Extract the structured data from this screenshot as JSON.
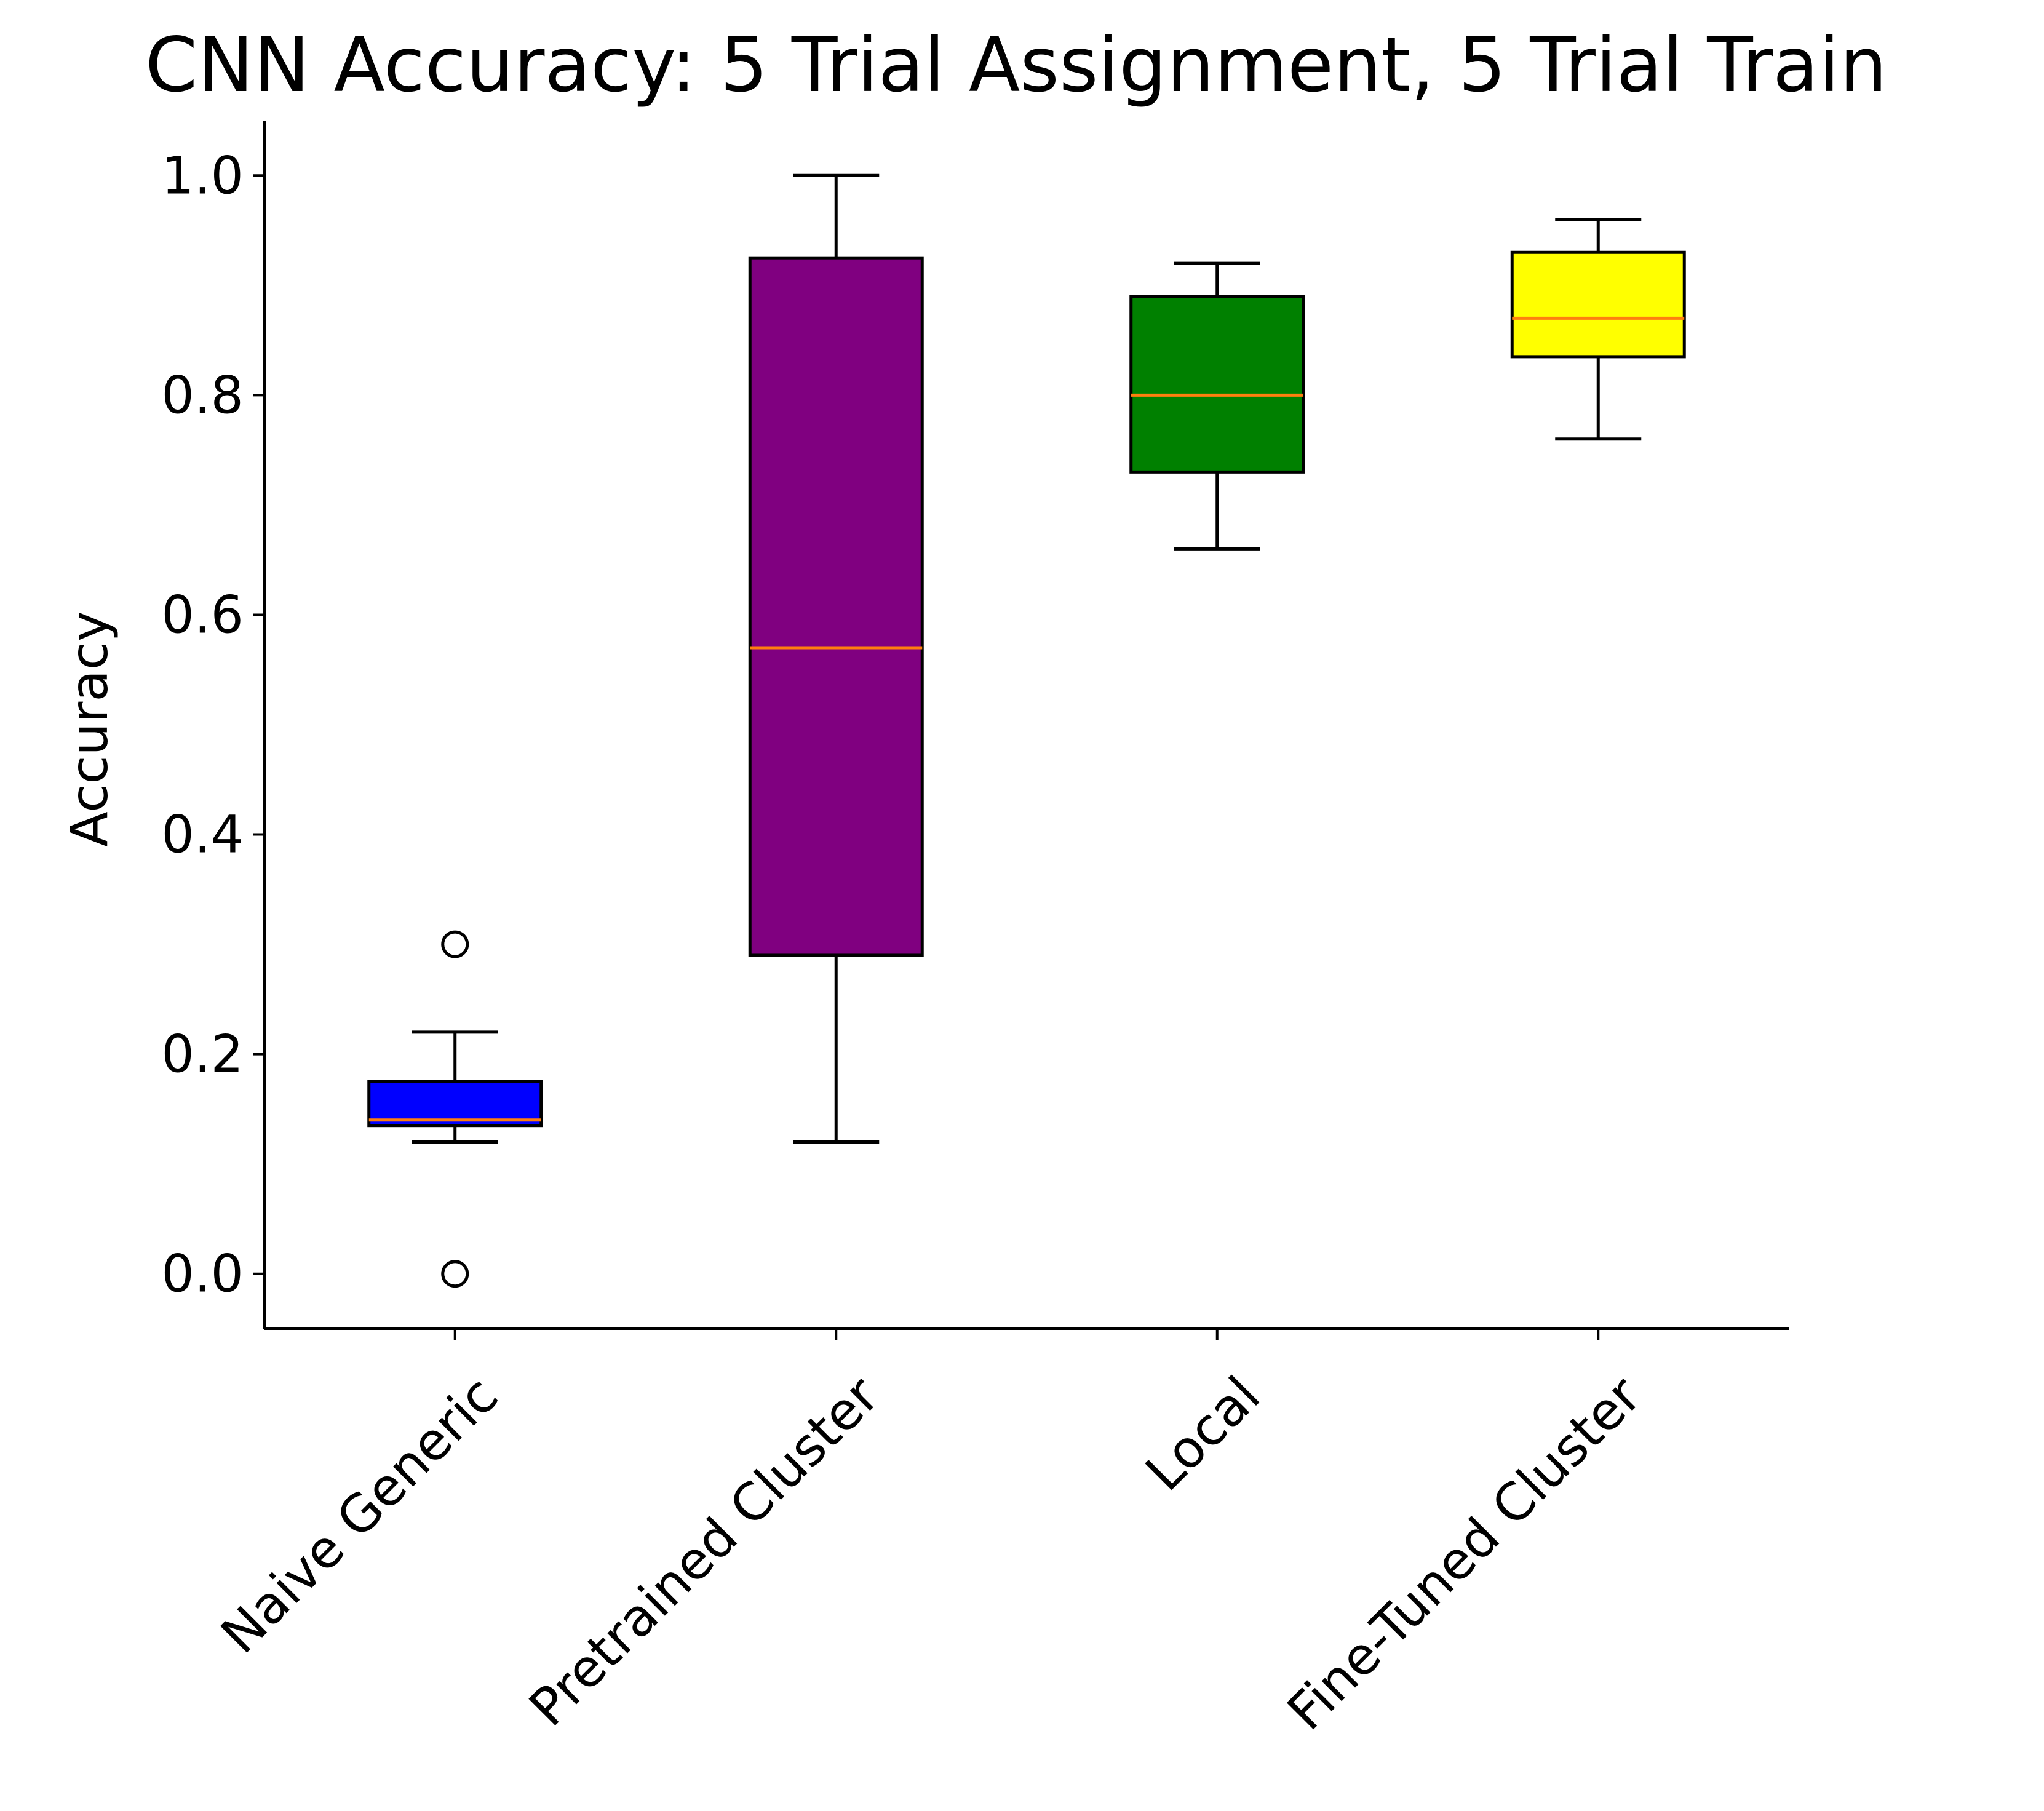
{
  "chart_data": {
    "type": "box",
    "title": "CNN Accuracy: 5 Trial Assignment, 5 Trial Train",
    "xlabel": "",
    "ylabel": "Accuracy",
    "ylim": [
      -0.05,
      1.05
    ],
    "yticks": [
      0.0,
      0.2,
      0.4,
      0.6,
      0.8,
      1.0
    ],
    "ytick_labels": [
      "0.0",
      "0.2",
      "0.4",
      "0.6",
      "0.8",
      "1.0"
    ],
    "median_color": "#ff7f0e",
    "categories": [
      "Naive Generic",
      "Pretrained Cluster",
      "Local",
      "Fine-Tuned Cluster"
    ],
    "boxes": [
      {
        "name": "Naive Generic",
        "color": "#0000ff",
        "whisker_low": 0.12,
        "q1": 0.135,
        "median": 0.14,
        "q3": 0.175,
        "whisker_high": 0.22,
        "fliers": [
          0.3,
          0.0
        ]
      },
      {
        "name": "Pretrained Cluster",
        "color": "#800080",
        "whisker_low": 0.12,
        "q1": 0.29,
        "median": 0.57,
        "q3": 0.925,
        "whisker_high": 1.0,
        "fliers": []
      },
      {
        "name": "Local",
        "color": "#008000",
        "whisker_low": 0.66,
        "q1": 0.73,
        "median": 0.8,
        "q3": 0.89,
        "whisker_high": 0.92,
        "fliers": []
      },
      {
        "name": "Fine-Tuned Cluster",
        "color": "#ffff00",
        "whisker_low": 0.76,
        "q1": 0.835,
        "median": 0.87,
        "q3": 0.93,
        "whisker_high": 0.96,
        "fliers": []
      }
    ]
  }
}
